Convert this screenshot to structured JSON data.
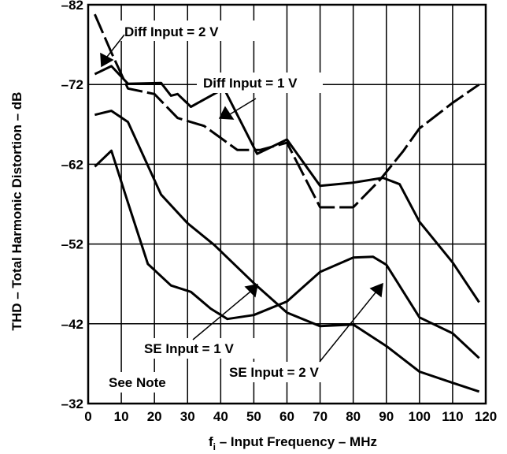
{
  "chart_data": {
    "type": "line",
    "title": "",
    "xlabel_main": "f",
    "xlabel_sub": "i",
    "xlabel_rest": " – Input Frequency – MHz",
    "ylabel": "THD – Total Harmonic Distortion – dB",
    "xlim": [
      0,
      120
    ],
    "ylim": [
      -82,
      -32
    ],
    "x_ticks": [
      0,
      10,
      20,
      30,
      40,
      50,
      60,
      70,
      80,
      90,
      100,
      110,
      120
    ],
    "y_ticks": [
      -82,
      -72,
      -62,
      -52,
      -42,
      -32
    ],
    "y_tick_values": [
      82,
      72,
      62,
      52,
      42,
      32
    ],
    "grid": "vertical",
    "series": [
      {
        "name": "Diff Input = 2 V",
        "style": "dashed",
        "x": [
          2,
          7,
          12,
          20,
          27,
          35,
          45,
          52,
          60,
          70,
          80,
          88,
          95,
          100,
          110,
          118
        ],
        "y": [
          -80.8,
          -76,
          -71.5,
          -70.8,
          -67.8,
          -66.8,
          -63.8,
          -63.8,
          -64.7,
          -56.6,
          -56.6,
          -60,
          -63.6,
          -66.5,
          -69.7,
          -72
        ]
      },
      {
        "name": "Diff Input = 1 V",
        "style": "solid",
        "x": [
          2,
          7,
          12,
          22,
          25,
          27,
          31,
          41,
          51,
          60,
          70,
          80,
          89,
          94,
          100,
          110,
          118
        ],
        "y": [
          -73.3,
          -74.3,
          -72.1,
          -72.2,
          -70.6,
          -70.8,
          -69.2,
          -71.5,
          -63.3,
          -65.1,
          -59.3,
          -59.7,
          -60.3,
          -59.5,
          -54.8,
          -49.7,
          -44.7
        ]
      },
      {
        "name": "SE Input = 1 V",
        "style": "solid",
        "x": [
          2,
          7,
          12,
          22,
          30,
          38,
          50,
          60,
          70,
          80,
          90,
          100,
          110,
          118
        ],
        "y": [
          -68.2,
          -68.7,
          -67.3,
          -58.2,
          -54.6,
          -51.9,
          -47.1,
          -43.4,
          -41.7,
          -41.9,
          -39.2,
          -36,
          -34.6,
          -33.5
        ]
      },
      {
        "name": "SE Input = 2 V",
        "style": "solid",
        "x": [
          2,
          7,
          12,
          18,
          25,
          31,
          37,
          42,
          50,
          60,
          70,
          80,
          86,
          90,
          100,
          110,
          118
        ],
        "y": [
          -61.7,
          -63.7,
          -57.2,
          -49.5,
          -46.8,
          -46,
          -43.9,
          -42.6,
          -43.1,
          -44.8,
          -48.5,
          -50.3,
          -50.4,
          -49.4,
          -42.8,
          -40.8,
          -37.7
        ]
      }
    ],
    "annotations": [
      {
        "text": "Diff Input = 2 V",
        "series": 0
      },
      {
        "text": "Diff Input = 1 V",
        "series": 1
      },
      {
        "text": "SE Input = 1 V",
        "series": 2
      },
      {
        "text": "SE Input = 2 V",
        "series": 3
      },
      {
        "text": "See Note"
      }
    ]
  }
}
